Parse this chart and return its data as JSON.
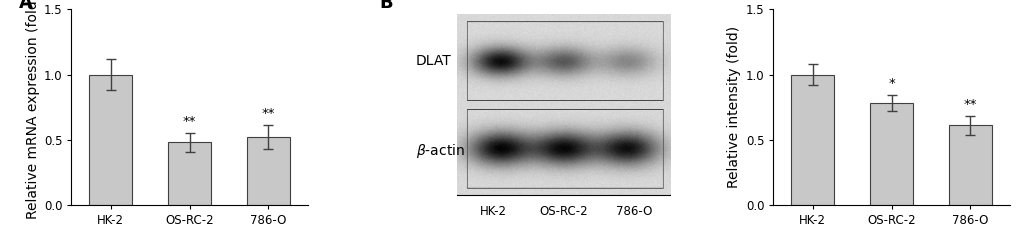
{
  "panel_A": {
    "categories": [
      "HK-2",
      "OS-RC-2",
      "786-O"
    ],
    "values": [
      1.0,
      0.48,
      0.52
    ],
    "errors": [
      0.12,
      0.07,
      0.09
    ],
    "significance": [
      "",
      "**",
      "**"
    ],
    "ylabel": "Relative mRNA expression (fold)",
    "ylim": [
      0,
      1.5
    ],
    "yticks": [
      0.0,
      0.5,
      1.0,
      1.5
    ],
    "bar_color": "#c8c8c8",
    "bar_edge_color": "#404040",
    "error_color": "#404040"
  },
  "panel_B_bands": {
    "dlat_label": "DLAT",
    "bactin_label": "β-actin",
    "categories": [
      "HK-2",
      "OS-RC-2",
      "786-O"
    ]
  },
  "panel_C": {
    "categories": [
      "HK-2",
      "OS-RC-2",
      "786-O"
    ],
    "values": [
      1.0,
      0.78,
      0.61
    ],
    "errors": [
      0.08,
      0.06,
      0.07
    ],
    "significance": [
      "",
      "*",
      "**"
    ],
    "ylabel": "Relative intensity (fold)",
    "ylim": [
      0,
      1.5
    ],
    "yticks": [
      0.0,
      0.5,
      1.0,
      1.5
    ],
    "bar_color": "#c8c8c8",
    "bar_edge_color": "#404040",
    "error_color": "#404040"
  },
  "background_color": "#ffffff",
  "label_fontsize": 10,
  "tick_fontsize": 8.5,
  "sig_fontsize": 9.5,
  "panel_label_fontsize": 13
}
